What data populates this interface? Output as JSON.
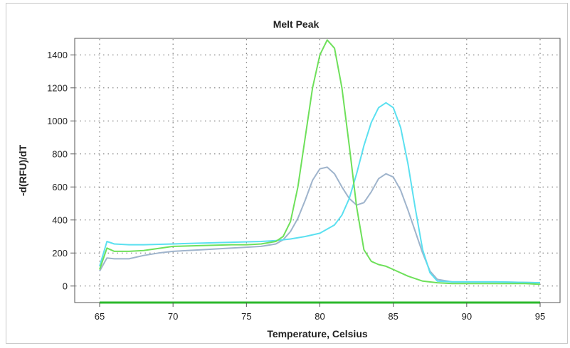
{
  "chart_data": {
    "type": "line",
    "title": "Melt Peak",
    "xlabel": "Temperature, Celsius",
    "ylabel": "-d(RFU)/dT",
    "xlim": [
      65,
      95
    ],
    "ylim": [
      -100,
      1500
    ],
    "xticks": [
      65,
      70,
      75,
      80,
      85,
      90,
      95
    ],
    "yticks": [
      0,
      200,
      400,
      600,
      800,
      1000,
      1200,
      1400
    ],
    "grid": true,
    "series": [
      {
        "color": "#9fb4cc",
        "x": [
          65,
          65.5,
          66,
          67,
          68,
          69,
          70,
          72,
          74,
          75,
          76,
          77,
          77.5,
          78,
          78.5,
          79,
          79.5,
          80,
          80.5,
          81,
          81.5,
          82,
          82.5,
          83,
          83.5,
          84,
          84.5,
          85,
          85.5,
          86,
          86.5,
          87,
          87.5,
          88,
          89,
          90,
          92,
          95
        ],
        "y": [
          90,
          170,
          165,
          165,
          185,
          200,
          210,
          220,
          230,
          235,
          240,
          255,
          280,
          330,
          410,
          520,
          640,
          710,
          720,
          680,
          600,
          530,
          490,
          505,
          570,
          650,
          680,
          660,
          580,
          460,
          330,
          200,
          90,
          40,
          25,
          25,
          25,
          20
        ]
      },
      {
        "color": "#5be0f0",
        "x": [
          65,
          65.5,
          66,
          67,
          68,
          70,
          72,
          74,
          76,
          77,
          78,
          79,
          80,
          81,
          81.5,
          82,
          82.5,
          83,
          83.5,
          84,
          84.5,
          85,
          85.5,
          86,
          86.5,
          87,
          87.5,
          88,
          89,
          90,
          92,
          95
        ],
        "y": [
          120,
          270,
          255,
          250,
          250,
          255,
          260,
          265,
          270,
          275,
          285,
          300,
          320,
          370,
          430,
          530,
          680,
          850,
          990,
          1080,
          1110,
          1080,
          960,
          740,
          470,
          220,
          80,
          30,
          25,
          25,
          25,
          20
        ]
      },
      {
        "color": "#6ee05a",
        "x": [
          65,
          65.5,
          66,
          67,
          68,
          70,
          72,
          74,
          75,
          76,
          77,
          77.5,
          78,
          78.5,
          79,
          79.5,
          80,
          80.5,
          81,
          81.5,
          82,
          82.5,
          83,
          83.5,
          84,
          84.5,
          85,
          86,
          87,
          88,
          89,
          90,
          92,
          94,
          95
        ],
        "y": [
          100,
          230,
          210,
          210,
          215,
          240,
          245,
          250,
          250,
          255,
          270,
          300,
          390,
          600,
          900,
          1200,
          1400,
          1490,
          1440,
          1200,
          850,
          480,
          220,
          150,
          130,
          120,
          100,
          60,
          30,
          20,
          15,
          15,
          15,
          15,
          10
        ]
      },
      {
        "color": "#2cb82c",
        "x": [
          65,
          95
        ],
        "y": [
          -100,
          -100
        ]
      }
    ]
  }
}
